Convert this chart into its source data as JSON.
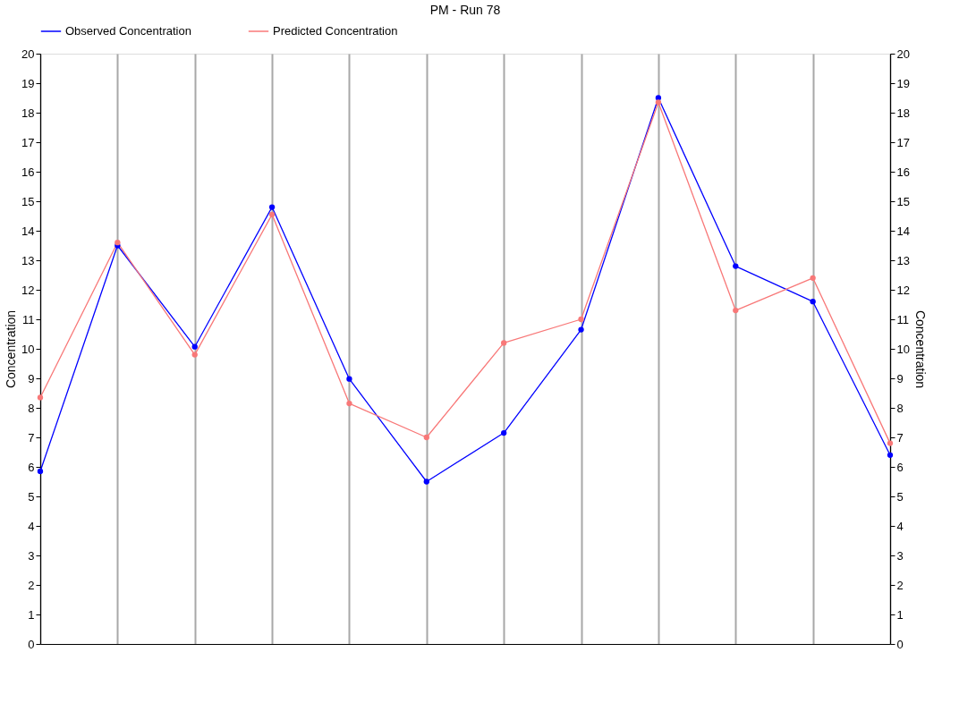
{
  "chart_data": {
    "type": "line",
    "title": "PM - Run 78",
    "ylabel": "Concentration",
    "y2label": "Concentration",
    "categories": [
      null,
      null,
      null,
      null,
      null,
      null,
      null,
      null,
      null,
      null,
      null,
      null
    ],
    "series": [
      {
        "name": "Observed Concentration",
        "color": "#0000ff",
        "values": [
          5.85,
          13.5,
          10.07,
          14.8,
          8.98,
          5.5,
          7.15,
          10.65,
          18.5,
          12.8,
          11.6,
          6.4
        ]
      },
      {
        "name": "Predicted Concentration",
        "color": "#f87878",
        "values": [
          8.35,
          13.6,
          9.8,
          14.55,
          8.15,
          7.0,
          10.2,
          11.0,
          18.35,
          11.3,
          12.4,
          6.8
        ]
      }
    ],
    "ylim": [
      0,
      20
    ],
    "yticks": [
      0,
      1,
      2,
      3,
      4,
      5,
      6,
      7,
      8,
      9,
      10,
      11,
      12,
      13,
      14,
      15,
      16,
      17,
      18,
      19,
      20
    ],
    "y2lim": [
      0,
      20
    ],
    "y2ticks": [
      0,
      1,
      2,
      3,
      4,
      5,
      6,
      7,
      8,
      9,
      10,
      11,
      12,
      13,
      14,
      15,
      16,
      17,
      18,
      19,
      20
    ],
    "grid": "x",
    "legend": "top left",
    "marker": "circle",
    "line_style": "solid"
  }
}
